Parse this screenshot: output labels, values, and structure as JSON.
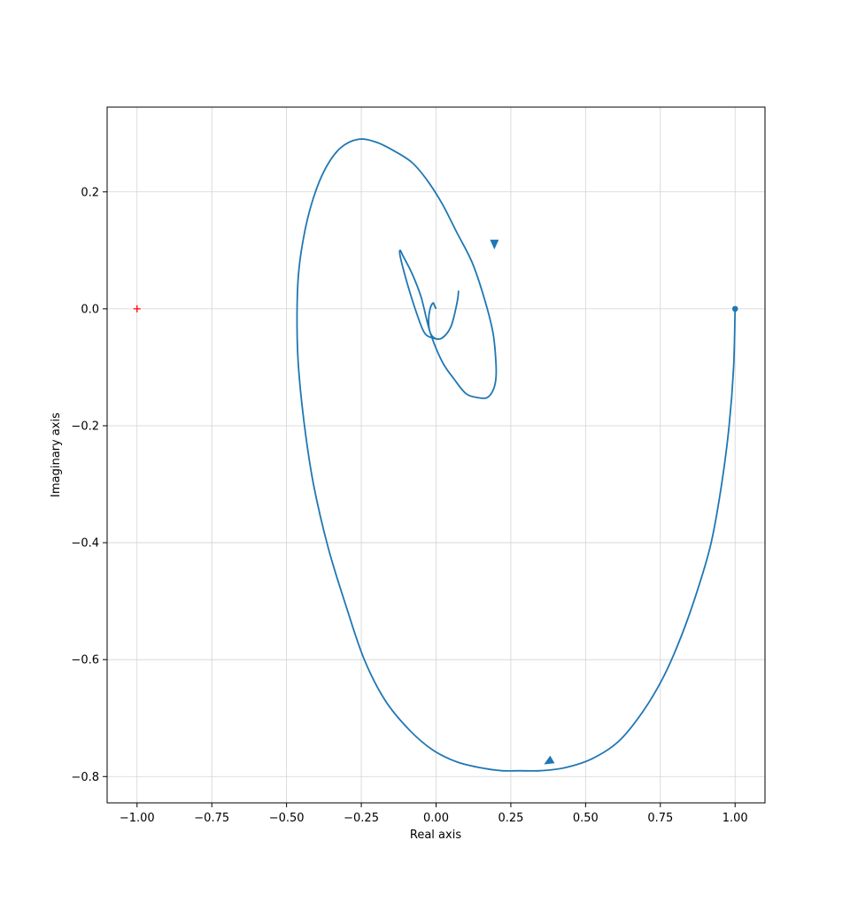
{
  "chart_data": {
    "type": "line",
    "title": "",
    "xlabel": "Real axis",
    "ylabel": "Imaginary axis",
    "xlim": [
      -1.1,
      1.1
    ],
    "ylim": [
      -0.845,
      0.345
    ],
    "grid": true,
    "xticks": [
      -1.0,
      -0.75,
      -0.5,
      -0.25,
      0.0,
      0.25,
      0.5,
      0.75,
      1.0
    ],
    "xtick_labels": [
      "−1.00",
      "−0.75",
      "−0.50",
      "−0.25",
      "0.00",
      "0.25",
      "0.50",
      "0.75",
      "1.00"
    ],
    "yticks": [
      0.2,
      0.0,
      -0.2,
      -0.4,
      -0.6,
      -0.8
    ],
    "ytick_labels": [
      "0.2",
      "0.0",
      "−0.2",
      "−0.4",
      "−0.6",
      "−0.8"
    ],
    "series": [
      {
        "color": "#1f77b4",
        "x": [
          1.0,
          0.995,
          0.98,
          0.955,
          0.92,
          0.875,
          0.82,
          0.76,
          0.69,
          0.61,
          0.52,
          0.43,
          0.35,
          0.28,
          0.22,
          0.15,
          0.07,
          -0.01,
          -0.09,
          -0.17,
          -0.24,
          -0.3,
          -0.36,
          -0.41,
          -0.44,
          -0.46,
          -0.465,
          -0.46,
          -0.44,
          -0.41,
          -0.37,
          -0.32,
          -0.26,
          -0.2,
          -0.14,
          -0.08,
          -0.03,
          0.02,
          0.07,
          0.12,
          0.16,
          0.19,
          0.2,
          0.2,
          0.19,
          0.17,
          0.14,
          0.1,
          0.06,
          0.02,
          -0.02,
          -0.05,
          -0.08,
          -0.11,
          -0.12,
          -0.12,
          -0.1,
          -0.07,
          -0.04,
          -0.01,
          0.02,
          0.05,
          0.07,
          0.075,
          0.07,
          0.05,
          0.02,
          -0.005,
          -0.02,
          -0.025,
          -0.02,
          -0.01,
          -0.005,
          0.0
        ],
        "y": [
          0.0,
          -0.1,
          -0.2,
          -0.3,
          -0.4,
          -0.48,
          -0.56,
          -0.63,
          -0.69,
          -0.74,
          -0.77,
          -0.785,
          -0.79,
          -0.79,
          -0.79,
          -0.785,
          -0.775,
          -0.755,
          -0.72,
          -0.67,
          -0.6,
          -0.51,
          -0.41,
          -0.3,
          -0.2,
          -0.1,
          -0.02,
          0.06,
          0.13,
          0.19,
          0.24,
          0.275,
          0.29,
          0.285,
          0.27,
          0.25,
          0.22,
          0.18,
          0.13,
          0.08,
          0.02,
          -0.04,
          -0.09,
          -0.12,
          -0.14,
          -0.152,
          -0.152,
          -0.145,
          -0.12,
          -0.09,
          -0.04,
          0.02,
          0.06,
          0.09,
          0.1,
          0.09,
          0.05,
          0.0,
          -0.04,
          -0.05,
          -0.05,
          -0.03,
          0.01,
          0.03,
          0.01,
          -0.03,
          -0.05,
          -0.05,
          -0.04,
          -0.02,
          0.0,
          0.01,
          0.005,
          0.0
        ]
      }
    ],
    "start_marker": {
      "x": 1.0,
      "y": 0.0,
      "color": "#1f77b4"
    },
    "arrows": [
      {
        "x": 0.375,
        "y": -0.775,
        "dx": -0.05,
        "dy": -0.015
      },
      {
        "x": 0.195,
        "y": 0.11,
        "dx": 0.0,
        "dy": -0.05
      }
    ],
    "critical_point": {
      "x": -1.0,
      "y": 0.0,
      "color": "#ff0000"
    }
  }
}
